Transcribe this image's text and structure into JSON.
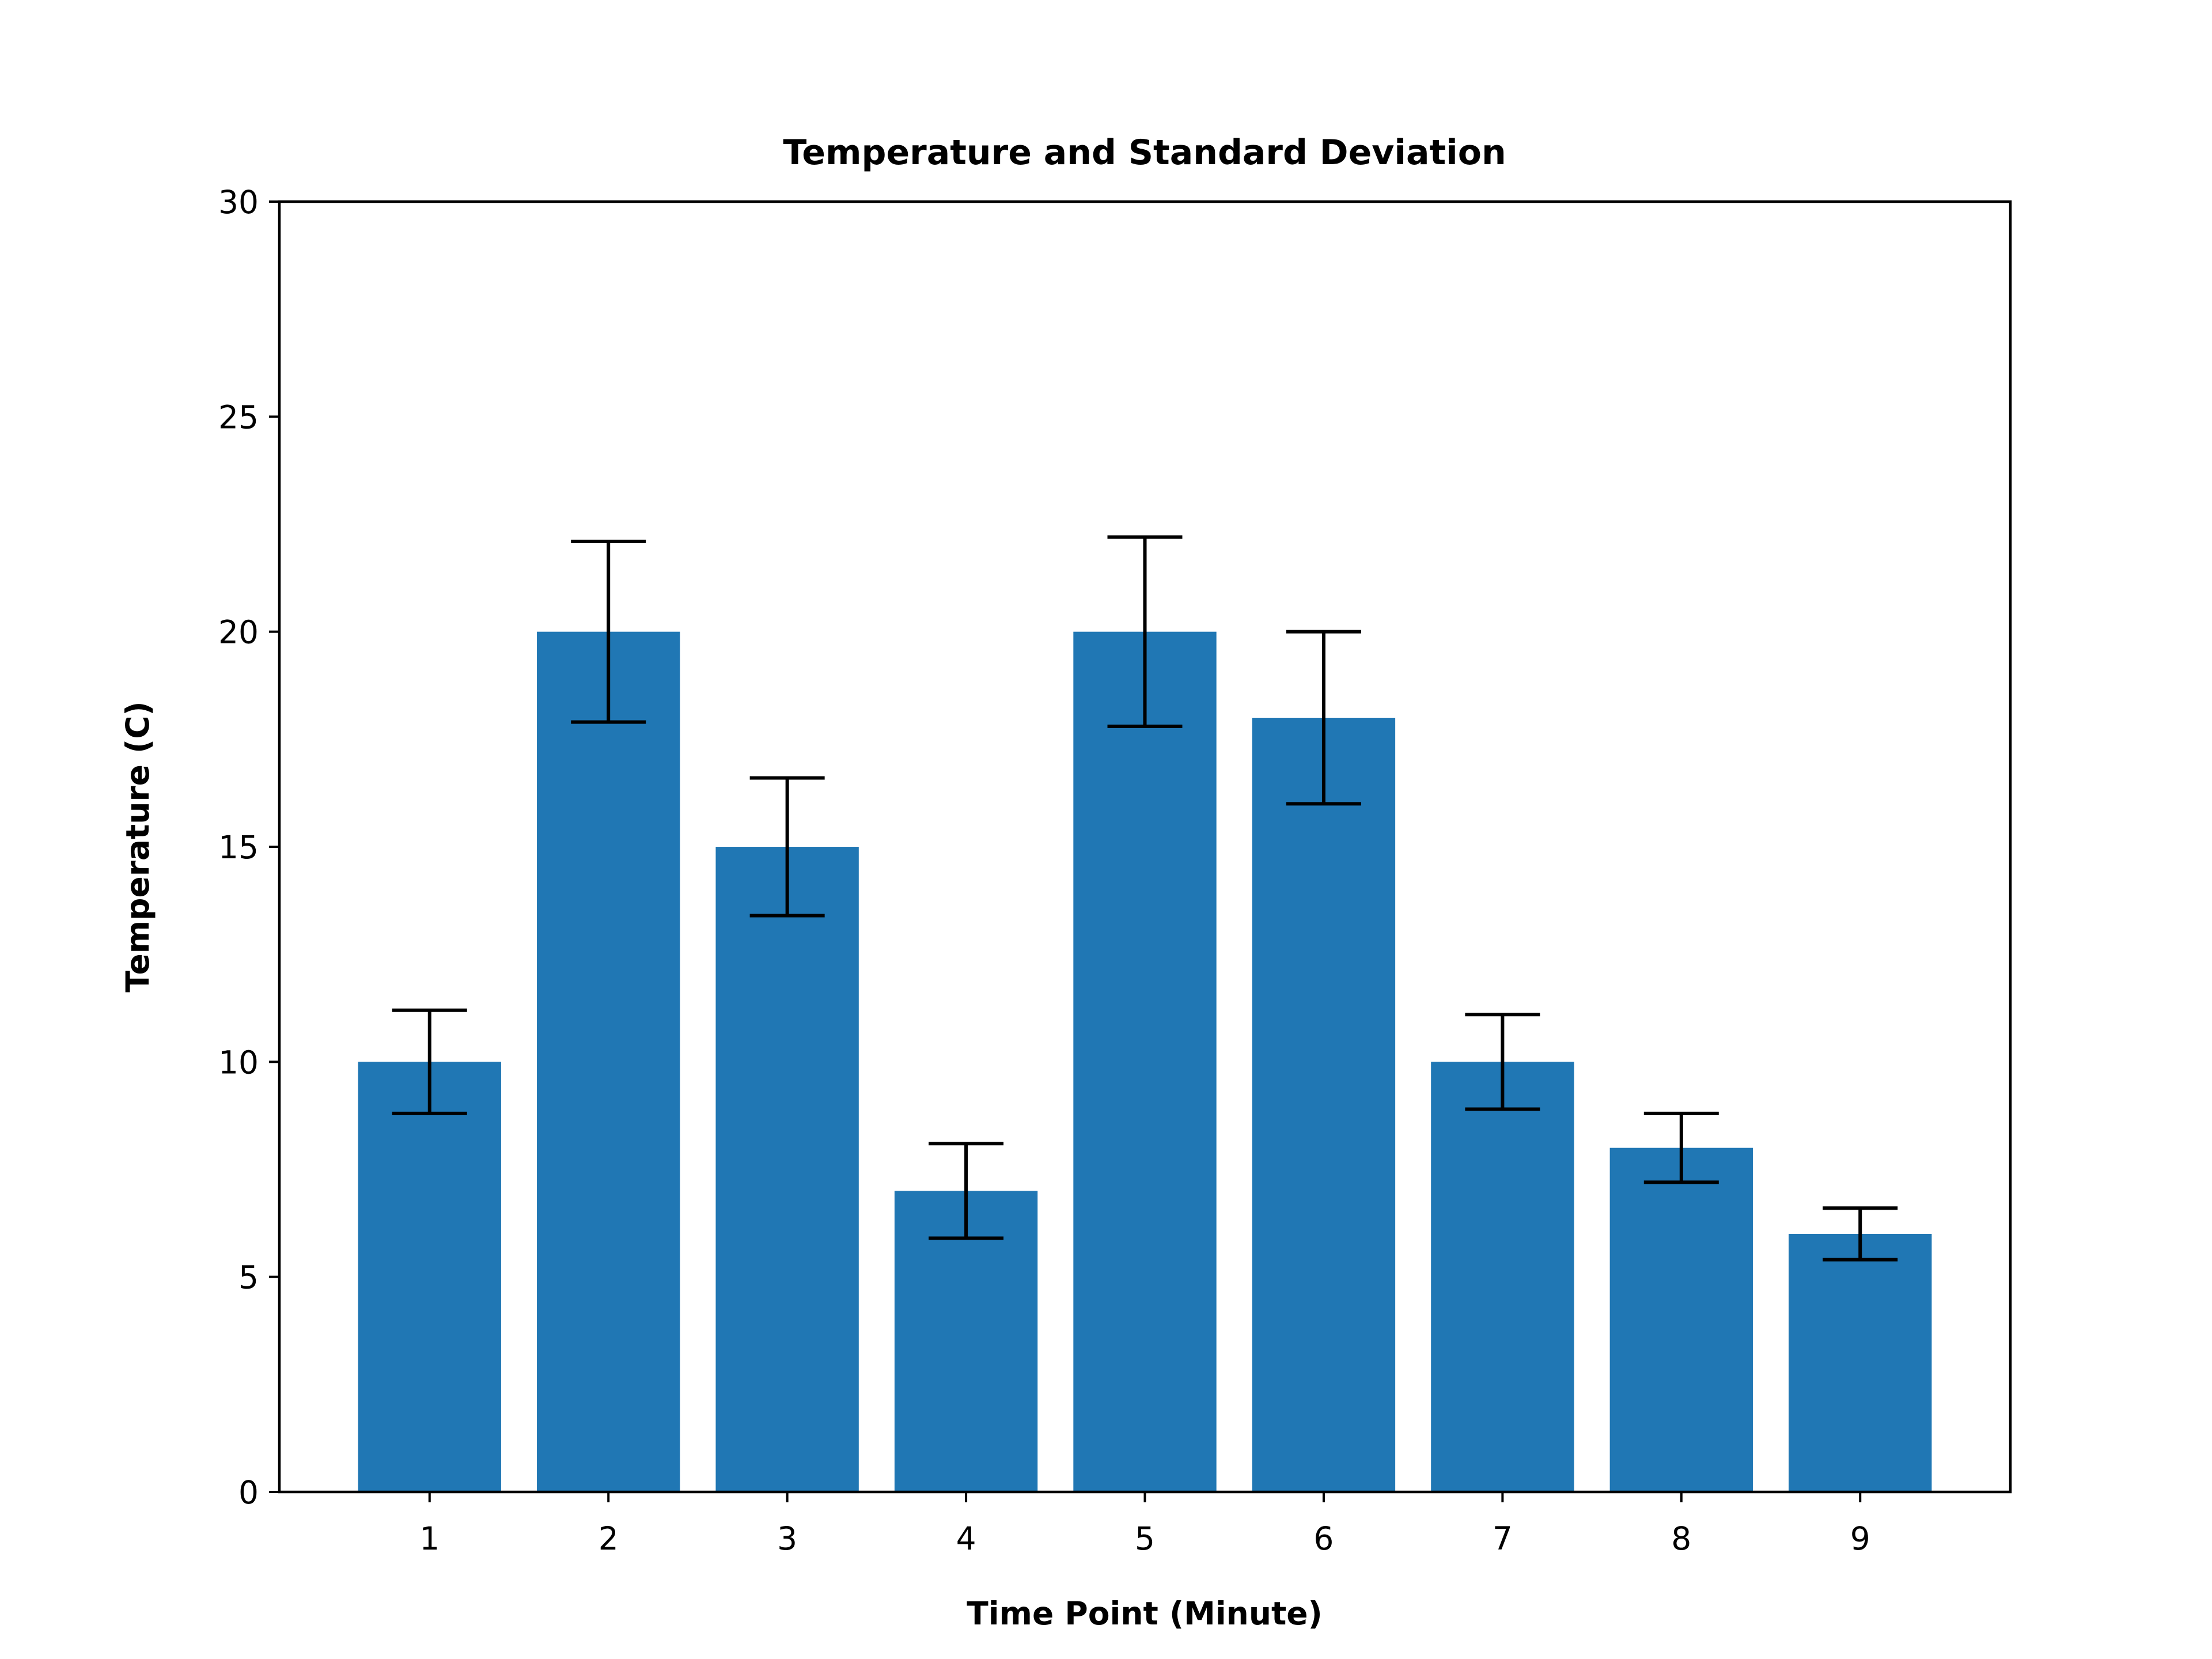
{
  "chart_data": {
    "type": "bar",
    "title": "Temperature and Standard Deviation",
    "xlabel": "Time Point (Minute)",
    "ylabel": "Temperature (C)",
    "categories": [
      "1",
      "2",
      "3",
      "4",
      "5",
      "6",
      "7",
      "8",
      "9"
    ],
    "values": [
      10,
      20,
      15,
      7,
      20,
      18,
      10,
      8,
      6
    ],
    "errors": [
      1.2,
      2.1,
      1.6,
      1.1,
      2.2,
      2.0,
      1.1,
      0.8,
      0.6
    ],
    "ylim": [
      0,
      30
    ],
    "yticks": [
      0,
      5,
      10,
      15,
      20,
      25,
      30
    ],
    "grid": false,
    "legend": "none",
    "bar_color": "#2077b4",
    "error_color": "#000000"
  }
}
